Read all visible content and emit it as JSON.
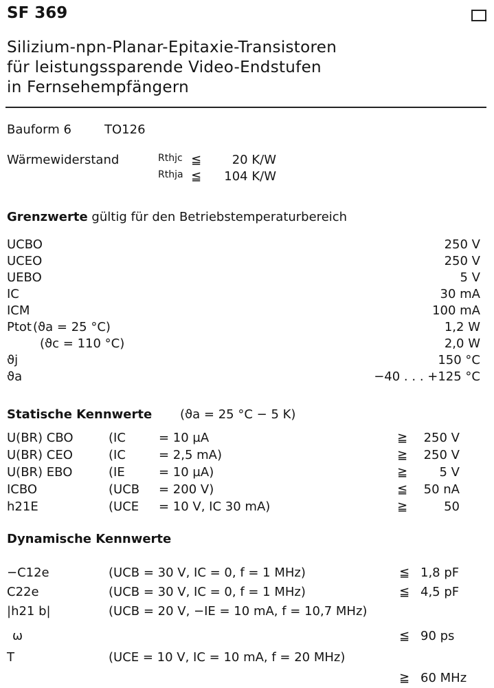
{
  "header": {
    "title": "SF 369",
    "subtitle_lines": [
      "Silizium-npn-Planar-Epitaxie-Transistoren",
      "für leistungssparende Video-Endstufen",
      "in Fernsehempfängern"
    ]
  },
  "package": {
    "label": "Bauform 6",
    "value": "TO126"
  },
  "thermal": {
    "label": "Wärmewiderstand",
    "rows": [
      {
        "symbol": "Rthjc",
        "rel": "≦",
        "value": "20 K/W"
      },
      {
        "symbol": "Rthja",
        "rel": "≦",
        "value": "104 K/W"
      }
    ]
  },
  "limits": {
    "heading": "Grenzwerte",
    "heading_rest": "gültig für den Betriebstemperaturbereich",
    "rows": [
      {
        "symbol": "UCBO",
        "cond": "",
        "value": "250 V"
      },
      {
        "symbol": "UCEO",
        "cond": "",
        "value": "250 V"
      },
      {
        "symbol": "UEBO",
        "cond": "",
        "value": "5 V"
      },
      {
        "symbol": "IC",
        "cond": "",
        "value": "30 mA"
      },
      {
        "symbol": "ICM",
        "cond": "",
        "value": "100 mA"
      },
      {
        "symbol": "Ptot",
        "cond": "(ϑa = 25 °C)",
        "value": "1,2 W"
      },
      {
        "symbol": "",
        "cond": "(ϑc = 110 °C)",
        "value": "2,0 W"
      },
      {
        "symbol": "ϑj",
        "cond": "",
        "value": "150 °C"
      },
      {
        "symbol": "ϑa",
        "cond": "",
        "value": "−40 . . . +125 °C"
      }
    ]
  },
  "static": {
    "heading": "Statische Kennwerte",
    "condition": "(ϑa = 25 °C − 5 K)",
    "rows": [
      {
        "symbol": "U(BR) CBO",
        "param": "(IC",
        "cond": "= 10 µA",
        "rel": "≧",
        "value": "250 V"
      },
      {
        "symbol": "U(BR) CEO",
        "param": "(IC",
        "cond": "= 2,5 mA)",
        "rel": "≧",
        "value": "250 V"
      },
      {
        "symbol": "U(BR) EBO",
        "param": "(IE",
        "cond": "= 10 µA)",
        "rel": "≧",
        "value": "5 V"
      },
      {
        "symbol": "ICBO",
        "param": "(UCB",
        "cond": "= 200 V)",
        "rel": "≦",
        "value": "50 nA"
      },
      {
        "symbol": "h21E",
        "param": "(UCE",
        "cond": "= 10 V, IC 30 mA)",
        "rel": "≧",
        "value": "50"
      }
    ]
  },
  "dynamic": {
    "heading": "Dynamische Kennwerte",
    "rows": [
      {
        "symbol": "−C12e",
        "cond": "(UCB = 30 V,   IC = 0, f = 1 MHz)",
        "rel": "≦",
        "value": "1,8 pF"
      },
      {
        "symbol": "C22e",
        "cond": "(UCB = 30 V,   IC = 0, f = 1 MHz)",
        "rel": "≦",
        "value": "4,5 pF"
      },
      {
        "symbol": "|h21 b|",
        "cond": "(UCB = 20 V,  −IE = 10 mA, f = 10,7 MHz)",
        "rel": "",
        "value": ""
      },
      {
        "symbol": "ω",
        "cond": "",
        "rel": "≦",
        "value": "90 ps"
      },
      {
        "symbol": "T",
        "cond": "(UCE = 10 V, IC = 10 mA, f = 20 MHz)",
        "rel": "",
        "value": ""
      },
      {
        "symbol": "",
        "cond": "",
        "rel": "≧",
        "value": "60 MHz"
      }
    ]
  }
}
